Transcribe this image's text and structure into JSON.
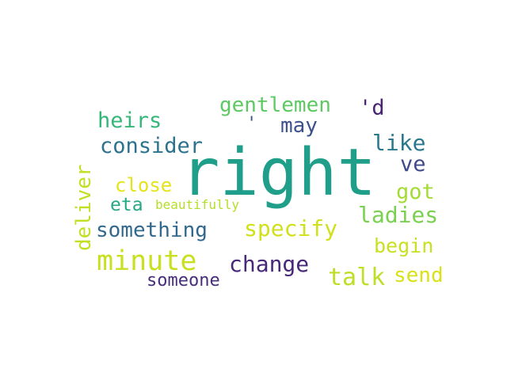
{
  "palette": {
    "teal": "#21918c",
    "purple": "#482878",
    "dark_purple": "#472d7b",
    "blue": "#31688e",
    "steel_blue": "#3b528b",
    "teal_blue": "#2c728e",
    "green": "#5ec962",
    "light_green": "#7ad151",
    "lime": "#bddf26",
    "yellow_green": "#d0e11c",
    "yellow": "#dde318",
    "sea_green": "#35b779",
    "aqua": "#26a784"
  },
  "words": [
    {
      "text": "right",
      "color": "#1f9e89"
    },
    {
      "text": "minute",
      "color": "#c8e020"
    },
    {
      "text": "something",
      "color": "#31688e"
    },
    {
      "text": "specify",
      "color": "#d0e11c"
    },
    {
      "text": "consider",
      "color": "#2c728e"
    },
    {
      "text": "change",
      "color": "#482878"
    },
    {
      "text": "ladies",
      "color": "#7ad151"
    },
    {
      "text": "deliver",
      "color": "#c2df23"
    },
    {
      "text": "heirs",
      "color": "#35b779"
    },
    {
      "text": "gentlemen",
      "color": "#5ec962"
    },
    {
      "text": "like",
      "color": "#2a788e"
    },
    {
      "text": "talk",
      "color": "#bddf26"
    },
    {
      "text": "may",
      "color": "#3b528b"
    },
    {
      "text": "got",
      "color": "#a5db36"
    },
    {
      "text": "close",
      "color": "#e5e419"
    },
    {
      "text": "eta",
      "color": "#26a784"
    },
    {
      "text": "begin",
      "color": "#c8e020"
    },
    {
      "text": "send",
      "color": "#d8e219"
    },
    {
      "text": "someone",
      "color": "#472d7b"
    },
    {
      "text": "'d",
      "color": "#482475"
    },
    {
      "text": "ve",
      "color": "#3e4a89"
    },
    {
      "text": "beautifully",
      "color": "#b5de2b"
    },
    {
      "text": "'",
      "color": "#3b528b"
    }
  ]
}
